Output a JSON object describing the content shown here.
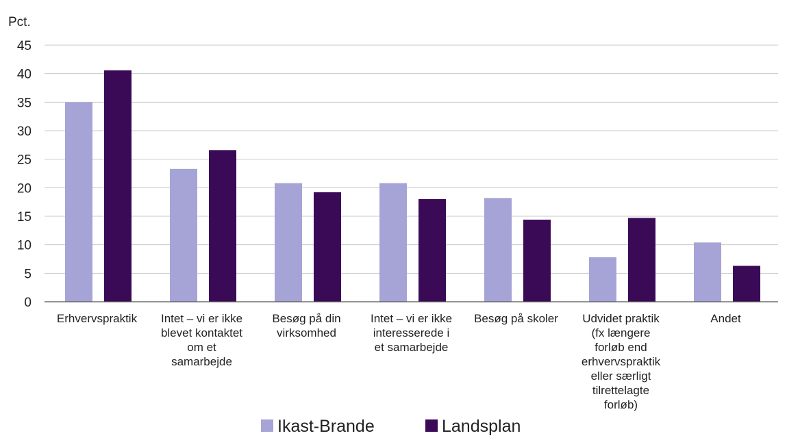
{
  "chart_data": {
    "type": "bar",
    "unit_label": "Pct.",
    "ylim": [
      0,
      45
    ],
    "yticks": [
      "0",
      "5",
      "10",
      "15",
      "20",
      "25",
      "30",
      "35",
      "40",
      "45"
    ],
    "grid": true,
    "legend_position": "bottom-center",
    "categories": [
      [
        "Erhvervspraktik"
      ],
      [
        "Intet – vi er ikke",
        "blevet kontaktet",
        "om et",
        "samarbejde"
      ],
      [
        "Besøg på din",
        "virksomhed"
      ],
      [
        "Intet – vi er ikke",
        "interesserede i",
        "et samarbejde"
      ],
      [
        "Besøg på skoler"
      ],
      [
        "Udvidet praktik",
        "(fx længere",
        "forløb end",
        "erhvervspraktik",
        "eller særligt",
        "tilrettelagte",
        "forløb)"
      ],
      [
        "Andet"
      ]
    ],
    "series": [
      {
        "name": "Ikast-Brande",
        "color": "#a6a3d6",
        "values": [
          35,
          23.3,
          20.8,
          20.8,
          18.2,
          7.8,
          10.4
        ]
      },
      {
        "name": "Landsplan",
        "color": "#3b0a57",
        "values": [
          40.6,
          26.6,
          19.2,
          18.0,
          14.4,
          14.7,
          6.3
        ]
      }
    ]
  }
}
